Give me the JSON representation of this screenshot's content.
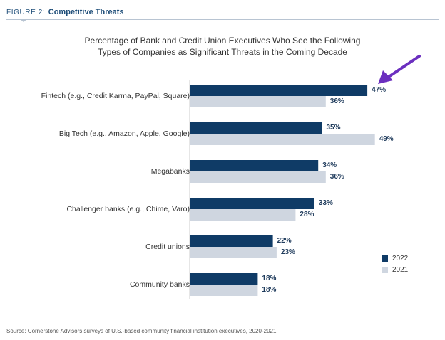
{
  "header": {
    "figure_label": "FIGURE 2:",
    "figure_title": "Competitive Threats"
  },
  "source": "Source: Cornerstone Advisors surveys of U.S.-based community financial institution executives, 2020-2021",
  "colors": {
    "series_2022": "#0f3b66",
    "series_2021": "#cfd6e0",
    "arrow": "#6b2fbf",
    "header": "#1f4e79"
  },
  "chart_data": {
    "type": "bar",
    "orientation": "horizontal",
    "title": [
      "Percentage of Bank and Credit Union Executives Who See the Following",
      "Types of Companies as Significant Threats in the Coming Decade"
    ],
    "categories": [
      "Fintech (e.g., Credit Karma, PayPal, Square)",
      "Big Tech (e.g., Amazon, Apple, Google)",
      "Megabanks",
      "Challenger banks (e.g., Chime, Varo)",
      "Credit unions",
      "Community banks"
    ],
    "series": [
      {
        "name": "2022",
        "values": [
          47,
          35,
          34,
          33,
          22,
          18
        ]
      },
      {
        "name": "2021",
        "values": [
          36,
          49,
          36,
          28,
          23,
          18
        ]
      }
    ],
    "value_suffix": "%",
    "xlim": [
      0,
      100
    ],
    "legend_position": "bottom-right",
    "annotation": {
      "type": "arrow",
      "target": "Fintech (e.g., Credit Karma, PayPal, Square) 2022"
    }
  }
}
